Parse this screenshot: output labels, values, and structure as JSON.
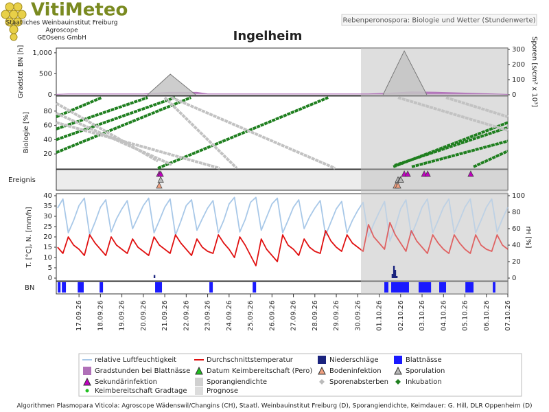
{
  "header": {
    "logo_title": "VitiMeteo",
    "logo_lines": [
      "Staatliches Weinbauinstitut Freiburg",
      "Agroscope",
      "GEOsens GmbH"
    ],
    "subtitle": "Rebenperonospora: Biologie und Wetter (Stundenwerte)"
  },
  "footer": "Algorithmen Plasmopara Viticola: Agroscope Wädenswil/Changins (CH), Staatl. Weinbauinstitut Freiburg (D), Sporangiendichte, Keimdauer: G. Hill, DLR Oppenheim (D)",
  "chart_data": {
    "type": "panels",
    "title": "Ingelheim",
    "xlim": [
      258.94,
      280
    ],
    "xticks": [
      {
        "value": 260,
        "label": "17.09.26"
      },
      {
        "value": 261,
        "label": "18.09.26"
      },
      {
        "value": 262,
        "label": "19.09.26"
      },
      {
        "value": 263,
        "label": "20.09.26"
      },
      {
        "value": 264,
        "label": "21.09.26"
      },
      {
        "value": 265,
        "label": "22.09.26"
      },
      {
        "value": 266,
        "label": "23.09.26"
      },
      {
        "value": 267,
        "label": "24.09.26"
      },
      {
        "value": 268,
        "label": "25.09.26"
      },
      {
        "value": 269,
        "label": "26.09.26"
      },
      {
        "value": 270,
        "label": "27.09.26"
      },
      {
        "value": 271,
        "label": "28.09.26"
      },
      {
        "value": 272,
        "label": "29.09.26"
      },
      {
        "value": 273,
        "label": "30.09.26"
      },
      {
        "value": 274,
        "label": "01.10.26"
      },
      {
        "value": 275,
        "label": "02.10.26"
      },
      {
        "value": 276,
        "label": "03.10.26"
      },
      {
        "value": 277,
        "label": "04.10.26"
      },
      {
        "value": 278,
        "label": "05.10.26"
      },
      {
        "value": 279,
        "label": "06.10.26"
      },
      {
        "value": 280,
        "label": "07.10.26"
      }
    ],
    "prognose": [
      273.15,
      280
    ],
    "panels": [
      {
        "type": "area",
        "ylabel": "Gradstd. BN [h]",
        "y2label": "Sporen [s/cm² x 10³]",
        "ylim": [
          0,
          1080
        ],
        "yticks": [
          0,
          500,
          {
            "value": 1000,
            "label": "1,000"
          }
        ],
        "y2lim": [
          0,
          300
        ],
        "y2ticks": [
          0,
          100,
          200,
          300
        ],
        "series": [
          {
            "color": "#b070b8",
            "x": [
              258.94,
              259.5,
              263.0,
              264.2,
              265.5,
              266.0,
              273.5,
              274.5,
              275.5,
              276.8,
              278.0,
              280
            ],
            "values": [
              10,
              20,
              20,
              60,
              60,
              20,
              20,
              40,
              70,
              60,
              40,
              10
            ]
          },
          {
            "color": "#c4c4c4",
            "axis": "y2",
            "x": [
              263.2,
              264.26,
              265.44
            ],
            "values": [
              0,
              136,
              0
            ]
          },
          {
            "color": "#c4c4c4",
            "axis": "y2",
            "x": [
              274.18,
              275.17,
              276.22
            ],
            "values": [
              0,
              290,
              0
            ]
          }
        ]
      },
      {
        "type": "line",
        "ylabel": "Biologie [%]",
        "ylim": [
          0,
          100
        ],
        "yticks": [
          20,
          40,
          60,
          80
        ],
        "series": [
          {
            "color": "#1f7f1f",
            "x": [
              258.94,
              261.06
            ],
            "values": [
              72,
              99
            ]
          },
          {
            "color": "#1f7f1f",
            "x": [
              258.94,
              263.2
            ],
            "values": [
              55,
              99
            ]
          },
          {
            "color": "#1f7f1f",
            "x": [
              258.94,
              264.48
            ],
            "values": [
              40,
              99
            ]
          },
          {
            "color": "#1f7f1f",
            "x": [
              258.94,
              265.22
            ],
            "values": [
              22,
              99
            ]
          },
          {
            "color": "#1f7f1f",
            "x": [
              263.68,
              271.62
            ],
            "values": [
              0,
              99
            ]
          },
          {
            "color": "#1f7f1f",
            "x": [
              274.66,
              280
            ],
            "values": [
              2,
              64
            ]
          },
          {
            "color": "#1f7f1f",
            "x": [
              274.72,
              280
            ],
            "values": [
              4,
              57
            ]
          },
          {
            "color": "#1f7f1f",
            "x": [
              275.52,
              280
            ],
            "values": [
              2,
              38
            ]
          },
          {
            "color": "#1f7f1f",
            "x": [
              278.4,
              280
            ],
            "values": [
              2,
              24
            ]
          },
          {
            "color": "#c2c2c2",
            "x": [
              258.94,
              263.68
            ],
            "values": [
              91,
              10
            ]
          },
          {
            "color": "#c2c2c2",
            "x": [
              258.94,
              264.32
            ],
            "values": [
              77,
              5
            ]
          },
          {
            "color": "#c2c2c2",
            "x": [
              258.94,
              266.56
            ],
            "values": [
              64,
              0
            ]
          },
          {
            "color": "#c2c2c2",
            "x": [
              264.0,
              267.36
            ],
            "values": [
              99,
              0
            ]
          },
          {
            "color": "#c2c2c2",
            "x": [
              264.32,
              271.94
            ],
            "values": [
              99,
              0
            ]
          },
          {
            "color": "#c2c2c2",
            "x": [
              274.88,
              280
            ],
            "values": [
              99,
              53
            ]
          },
          {
            "color": "#c2c2c2",
            "x": [
              277.12,
              280
            ],
            "values": [
              99,
              72
            ]
          }
        ]
      },
      {
        "type": "events",
        "ylabel": "Ereignis",
        "series": [
          {
            "color": "#c000c0",
            "x": [
              263.74,
              263.81,
              275.17,
              275.33,
              276.1,
              276.26,
              278.27
            ]
          },
          {
            "color": "#b8b8b8",
            "x": [
              263.81,
              274.88,
              274.98,
              275.01
            ]
          },
          {
            "color": "#f0a080",
            "x": [
              263.74,
              274.78,
              274.88
            ]
          }
        ]
      },
      {
        "type": "line",
        "ylabel": "T. [°C], N. [mm/h]",
        "y2label": "rH [%]",
        "ylim": [
          0,
          40
        ],
        "yticks": [
          0,
          5,
          10,
          15,
          20,
          25,
          30,
          35,
          40
        ],
        "y2lim": [
          0,
          100
        ],
        "y2ticks": [
          0,
          20,
          40,
          60,
          80,
          100
        ],
        "series": [
          {
            "color": "#a8c8e8",
            "axis": "y2",
            "x": [
              259,
              259.25,
              259.5,
              259.75,
              260,
              260.25,
              260.5,
              260.75,
              261,
              261.25,
              261.5,
              261.75,
              262,
              262.25,
              262.5,
              262.75,
              263,
              263.25,
              263.5,
              263.75,
              264,
              264.25,
              264.5,
              264.75,
              265,
              265.25,
              265.5,
              265.75,
              266,
              266.25,
              266.5,
              266.75,
              267,
              267.25,
              267.5,
              267.75,
              268,
              268.25,
              268.5,
              268.75,
              269,
              269.25,
              269.5,
              269.75,
              270,
              270.25,
              270.5,
              270.75,
              271,
              271.25,
              271.5,
              271.75,
              272,
              272.25,
              272.5,
              272.75,
              273,
              273.25,
              273.5,
              273.75,
              274,
              274.25,
              274.5,
              274.75,
              275,
              275.25,
              275.5,
              275.75,
              276,
              276.25,
              276.5,
              276.75,
              277,
              277.25,
              277.5,
              277.75,
              278,
              278.25,
              278.5,
              278.75,
              279,
              279.25,
              279.5,
              279.75,
              280
            ],
            "values": [
              85,
              96,
              55,
              70,
              88,
              97,
              52,
              68,
              86,
              95,
              56,
              72,
              84,
              94,
              60,
              74,
              88,
              97,
              55,
              70,
              86,
              96,
              52,
              69,
              88,
              95,
              58,
              72,
              85,
              94,
              55,
              70,
              90,
              98,
              56,
              71,
              92,
              98,
              58,
              74,
              90,
              97,
              55,
              70,
              86,
              95,
              60,
              74,
              85,
              94,
              52,
              68,
              84,
              93,
              55,
              70,
              82,
              92,
              50,
              66,
              80,
              93,
              45,
              62,
              84,
              95,
              52,
              68,
              86,
              96,
              55,
              70,
              86,
              96,
              55,
              70,
              86,
              96,
              55,
              70,
              86,
              96,
              56,
              72,
              86
            ]
          },
          {
            "color": "#e01010",
            "x": [
              259,
              259.25,
              259.5,
              259.75,
              260,
              260.25,
              260.5,
              260.75,
              261,
              261.25,
              261.5,
              261.75,
              262,
              262.25,
              262.5,
              262.75,
              263,
              263.25,
              263.5,
              263.75,
              264,
              264.25,
              264.5,
              264.75,
              265,
              265.25,
              265.5,
              265.75,
              266,
              266.25,
              266.5,
              266.75,
              267,
              267.25,
              267.5,
              267.75,
              268,
              268.25,
              268.5,
              268.75,
              269,
              269.25,
              269.5,
              269.75,
              270,
              270.25,
              270.5,
              270.75,
              271,
              271.25,
              271.5,
              271.75,
              272,
              272.25,
              272.5,
              272.75,
              273,
              273.25,
              273.5,
              273.75,
              274,
              274.25,
              274.5,
              274.75,
              275,
              275.25,
              275.5,
              275.75,
              276,
              276.25,
              276.5,
              276.75,
              277,
              277.25,
              277.5,
              277.75,
              278,
              278.25,
              278.5,
              278.75,
              279,
              279.25,
              279.5,
              279.75,
              280
            ],
            "values": [
              15,
              12,
              20,
              16,
              14,
              11,
              21,
              17,
              14,
              11,
              20,
              16,
              14,
              12,
              19,
              15,
              13,
              11,
              20,
              16,
              14,
              12,
              21,
              17,
              14,
              11,
              19,
              15,
              13,
              12,
              21,
              17,
              14,
              10,
              20,
              16,
              11,
              6,
              19,
              14,
              11,
              8,
              21,
              16,
              14,
              11,
              19,
              15,
              13,
              12,
              23,
              18,
              15,
              13,
              21,
              17,
              15,
              13,
              26,
              20,
              17,
              14,
              27,
              21,
              17,
              13,
              23,
              18,
              15,
              12,
              21,
              17,
              14,
              12,
              21,
              17,
              14,
              12,
              21,
              16,
              14,
              13,
              21,
              16,
              14
            ]
          },
          {
            "type": "bar",
            "color": "#1a237e",
            "x": [
              263.52,
              274.62,
              274.69,
              274.75,
              274.82
            ],
            "values": [
              1.5,
              2,
              6,
              4,
              1
            ]
          }
        ]
      },
      {
        "type": "intervals",
        "ylabel": "BN",
        "color": "#1a1aff",
        "intervals": [
          [
            259.01,
            259.14
          ],
          [
            259.2,
            259.39
          ],
          [
            259.94,
            260.22
          ],
          [
            260.96,
            261.12
          ],
          [
            263.55,
            263.87
          ],
          [
            266.08,
            266.24
          ],
          [
            268.1,
            268.26
          ],
          [
            274.24,
            274.43
          ],
          [
            274.56,
            275.39
          ],
          [
            275.84,
            276.42
          ],
          [
            276.8,
            277.12
          ],
          [
            278.02,
            278.4
          ],
          [
            279.3,
            279.42
          ]
        ]
      }
    ],
    "legend": [
      {
        "label": "relative Luftfeuchtigkeit",
        "symbol": "line",
        "color": "#a8c8e8"
      },
      {
        "label": "Durchschnittstemperatur",
        "symbol": "line",
        "color": "#e01010"
      },
      {
        "label": "Niederschläge",
        "symbol": "square",
        "color": "#1a237e"
      },
      {
        "label": "Blattnässe",
        "symbol": "square",
        "color": "#1a1aff"
      },
      {
        "label": "Gradstunden bei Blattnässe",
        "symbol": "square",
        "color": "#b070b8"
      },
      {
        "label": "Datum Keimbereitschaft (Pero)",
        "symbol": "triangle",
        "color": "#20c020"
      },
      {
        "label": "Bodeninfektion",
        "symbol": "triangle",
        "color": "#f0a080"
      },
      {
        "label": "Sporulation",
        "symbol": "triangle",
        "color": "#b8b8b8"
      },
      {
        "label": "Sekundärinfektion",
        "symbol": "triangle",
        "color": "#c000c0"
      },
      {
        "label": "Sporangiendichte",
        "symbol": "square",
        "color": "#d0d0d0"
      },
      {
        "label": "Sporenabsterben",
        "symbol": "diamond",
        "color": "#bbbbbb"
      },
      {
        "label": "Inkubation",
        "symbol": "diamond",
        "color": "#1f7f1f"
      },
      {
        "label": "Keimbereitschaft Gradtage",
        "symbol": "dot",
        "color": "#20c020"
      },
      {
        "label": "Prognose",
        "symbol": "square",
        "color": "#dcdcdc"
      }
    ]
  }
}
